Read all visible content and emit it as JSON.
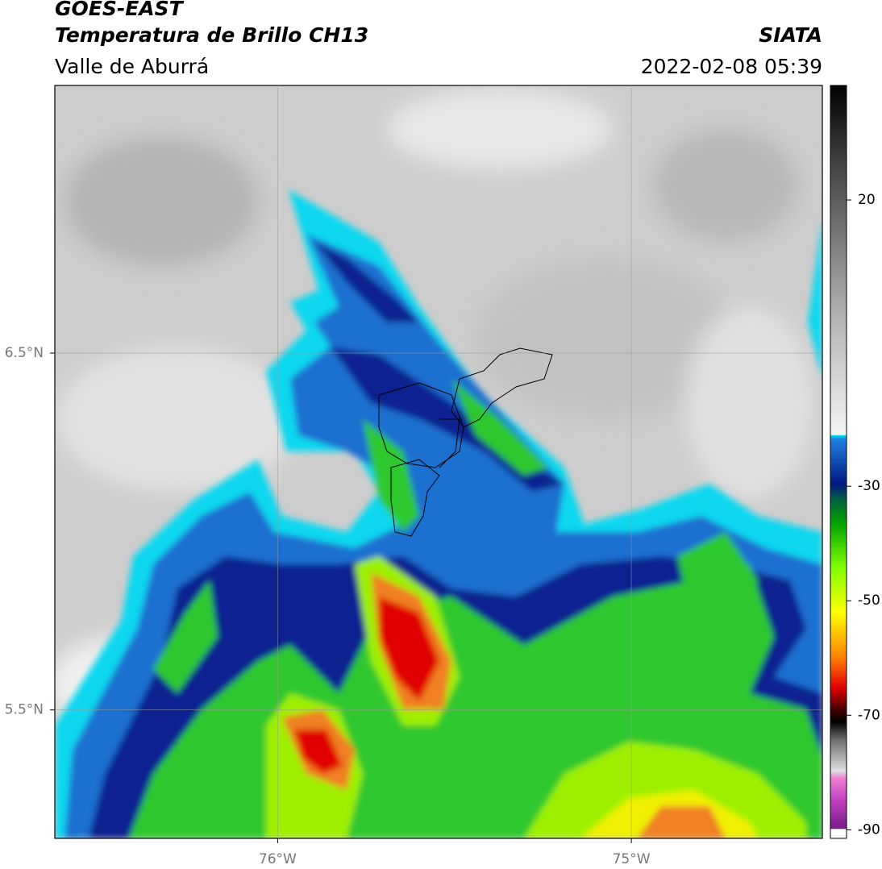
{
  "header": {
    "title": "GOES-EAST",
    "subtitle": "Temperatura de Brillo CH13",
    "region": "Valle de Aburrá",
    "source": "SIATA",
    "datetime": "2022-02-08 05:39"
  },
  "map": {
    "lon_range": [
      -76.63,
      -74.46
    ],
    "lat_range": [
      5.14,
      7.25
    ],
    "lon_gridlines": [
      {
        "value": -76,
        "label": "76°W"
      },
      {
        "value": -75,
        "label": "75°W"
      }
    ],
    "lat_gridlines": [
      {
        "value": 6.5,
        "label": "6.5°N"
      },
      {
        "value": 5.5,
        "label": "5.5°N"
      }
    ]
  },
  "colorbar": {
    "limits": [
      -91.5,
      40
    ],
    "ticks": [
      20,
      -30,
      -50,
      -70,
      -90
    ]
  }
}
